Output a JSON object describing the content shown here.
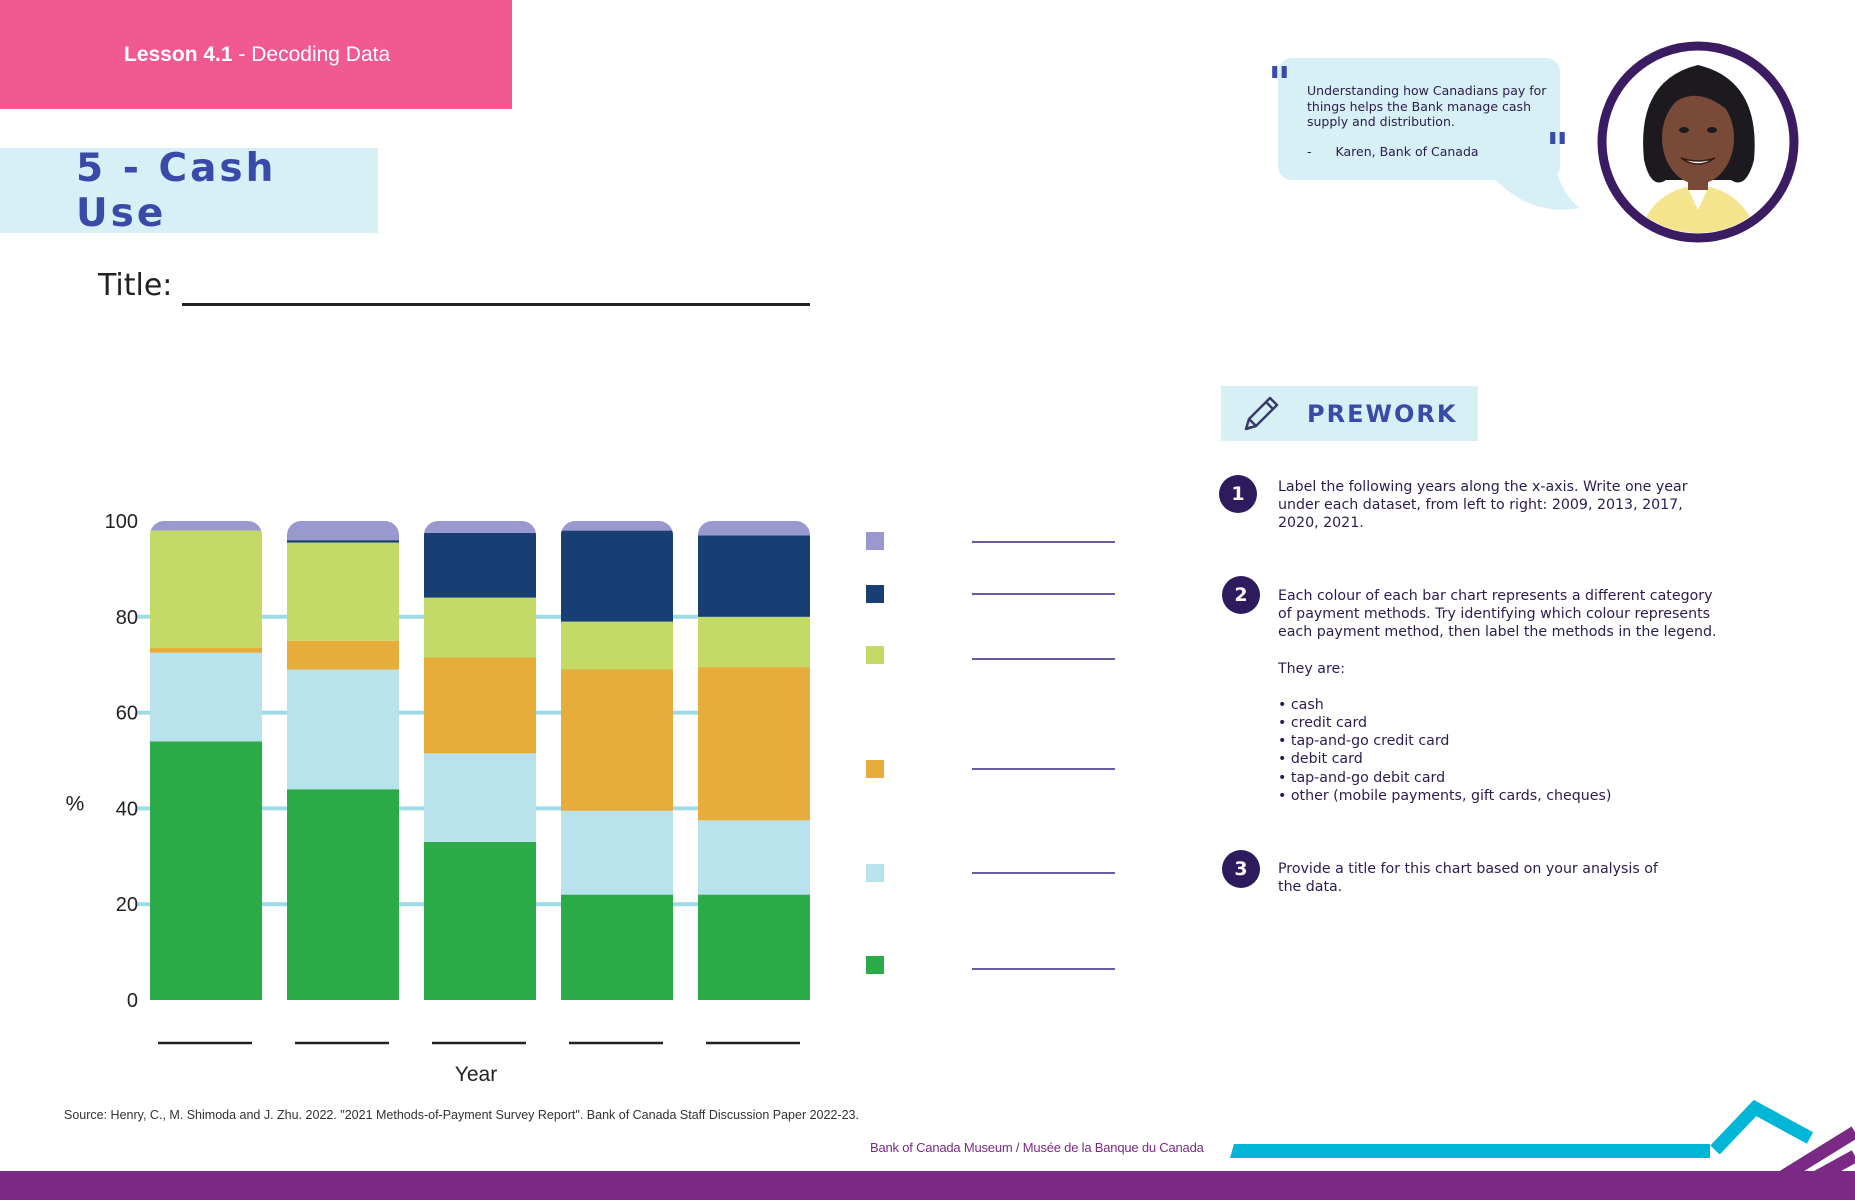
{
  "header": {
    "lesson_number": "Lesson 4.1",
    "lesson_separator": " - ",
    "lesson_name": "Decoding Data",
    "page_title": "5 - Cash Use",
    "title_label": "Title:"
  },
  "quote": {
    "text": "Understanding how Canadians pay for things helps the Bank manage cash supply and distribution.",
    "dash": "-",
    "author": "Karen, Bank of Canada"
  },
  "prework": {
    "heading": "PREWORK",
    "steps": [
      {
        "number": "1",
        "text": "Label the following years along the x-axis. Write one year under each dataset, from left to right: 2009, 2013, 2017, 2020, 2021."
      },
      {
        "number": "2",
        "text": "Each colour of each bar chart represents a different category of payment methods. Try identifying which colour represents each payment method, then label the methods in the legend.",
        "subtext": "They are:",
        "items": [
          "• cash",
          "• credit card",
          "• tap-and-go credit card",
          "• debit card",
          "• tap-and-go debit card",
          "• other (mobile payments, gift cards, cheques)"
        ]
      },
      {
        "number": "3",
        "text": "Provide a title for this chart based on your analysis of the data."
      }
    ]
  },
  "chart_data": {
    "type": "bar",
    "stacked": true,
    "categories": [
      "",
      "",
      "",
      "",
      ""
    ],
    "ylabel": "%",
    "xlabel": "Year",
    "ylim": [
      0,
      100
    ],
    "yticks": [
      0,
      20,
      40,
      60,
      80,
      100
    ],
    "grid": true,
    "legend_position": "right",
    "series": [
      {
        "color": "#2bab47",
        "values": [
          54,
          44,
          33,
          22,
          22
        ]
      },
      {
        "color": "#b8e3ec",
        "values": [
          18.5,
          25,
          18.5,
          17.5,
          15.5
        ]
      },
      {
        "color": "#e6ad3b",
        "values": [
          1,
          6,
          20,
          29.5,
          32
        ]
      },
      {
        "color": "#c3da67",
        "values": [
          24.5,
          20.5,
          12.5,
          10,
          10.5
        ]
      },
      {
        "color": "#173f73",
        "values": [
          0,
          0.5,
          13.5,
          19,
          17
        ]
      },
      {
        "color": "#9a99cf",
        "values": [
          2,
          4,
          2.5,
          2,
          3
        ]
      }
    ]
  },
  "source": "Source: Henry, C., M. Shimoda and J. Zhu. 2022. \"2021 Methods-of-Payment Survey Report\". Bank of Canada Staff Discussion Paper 2022-23.",
  "footer": {
    "museum": "Bank of Canada Museum",
    "museum_separator": " / ",
    "museum_fr": "Musée de la Banque du Canada",
    "museum_color": "#7a2a84",
    "accent_cyan": "#00b6d6"
  }
}
